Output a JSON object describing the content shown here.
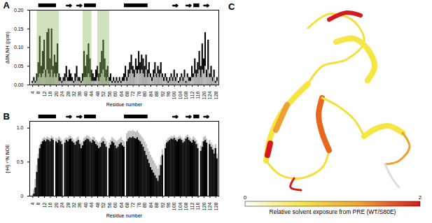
{
  "chart_data": [
    {
      "type": "bar",
      "panel": "A",
      "ylabel": "ΔδN,NH (ppm)",
      "xlabel": "Residue number",
      "x": [
        4,
        5,
        6,
        7,
        8,
        9,
        10,
        11,
        12,
        13,
        14,
        15,
        16,
        17,
        18,
        19,
        20,
        21,
        22,
        23,
        24,
        25,
        26,
        27,
        28,
        29,
        30,
        31,
        32,
        33,
        34,
        35,
        36,
        37,
        38,
        39,
        40,
        41,
        42,
        43,
        44,
        45,
        46,
        47,
        48,
        49,
        50,
        51,
        52,
        53,
        54,
        55,
        56,
        57,
        58,
        59,
        60,
        61,
        62,
        63,
        64,
        65,
        66,
        67,
        68,
        69,
        70,
        71,
        72,
        73,
        74,
        75,
        76,
        77,
        78,
        79,
        80,
        81,
        82,
        83,
        84,
        85,
        86,
        87,
        88,
        89,
        90,
        91,
        92,
        93,
        94,
        95,
        96,
        97,
        98,
        99,
        100,
        101,
        102,
        103,
        104,
        105,
        106,
        107,
        108,
        109,
        110,
        111,
        112,
        113,
        114,
        115,
        116,
        117,
        118,
        119,
        120,
        121,
        122,
        123,
        124,
        125,
        126,
        127,
        128,
        129
      ],
      "series": [
        {
          "color": "#000000",
          "values": [
            0.01,
            0.02,
            0.01,
            0.03,
            0.06,
            0.13,
            0.05,
            0.09,
            0.12,
            0.04,
            0.14,
            0.15,
            0.07,
            0.15,
            0.05,
            0.08,
            0.06,
            0.11,
            0.03,
            0.02,
            0.01,
            0.02,
            0.03,
            0.05,
            0.02,
            0.04,
            0.03,
            0.02,
            0.01,
            0.03,
            0.05,
            0.02,
            0.02,
            0.01,
            0.03,
            0.09,
            0.05,
            0.08,
            0.11,
            0.07,
            0.04,
            0.03,
            0.02,
            0.04,
            0.05,
            0.03,
            0.06,
            0.09,
            0.12,
            0.07,
            0.04,
            0.05,
            0.02,
            0.03,
            0.01,
            0.02,
            0.01,
            0.02,
            0.01,
            0.02,
            0.01,
            0.02,
            0.03,
            0.05,
            0.02,
            0.04,
            0.06,
            0.08,
            0.05,
            0.04,
            0.07,
            0.05,
            0.09,
            0.06,
            0.08,
            0.07,
            0.05,
            0.08,
            0.04,
            0.06,
            0.03,
            0.02,
            0.04,
            0.06,
            0.03,
            0.05,
            0.04,
            0.06,
            0.03,
            0.02,
            0.03,
            0.02,
            0.01,
            0.02,
            0.03,
            0.02,
            0.04,
            0.02,
            0.03,
            0.01,
            0.02,
            0.03,
            0.02,
            0.04,
            0.01,
            0.03,
            0.02,
            0.02,
            0.05,
            0.03,
            0.07,
            0.04,
            0.06,
            0.09,
            0.05,
            0.11,
            0.07,
            0.14,
            0.04,
            0.12,
            0.03,
            0.05,
            0.02,
            0.04,
            0.01,
            0.02
          ]
        },
        {
          "color": "#bdbdbd",
          "values": [
            0.005,
            0.01,
            0.005,
            0.01,
            0.02,
            0.03,
            0.02,
            0.03,
            0.04,
            0.02,
            0.04,
            0.03,
            0.02,
            0.04,
            0.02,
            0.03,
            0.02,
            0.03,
            0.01,
            0.01,
            0.005,
            0.01,
            0.01,
            0.02,
            0.01,
            0.01,
            0.01,
            0.01,
            0.005,
            0.01,
            0.02,
            0.01,
            0.01,
            0.005,
            0.01,
            0.02,
            0.02,
            0.02,
            0.03,
            0.02,
            0.01,
            0.01,
            0.01,
            0.01,
            0.02,
            0.01,
            0.02,
            0.03,
            0.04,
            0.02,
            0.01,
            0.02,
            0.01,
            0.01,
            0.005,
            0.01,
            0.005,
            0.01,
            0.005,
            0.01,
            0.005,
            0.01,
            0.01,
            0.02,
            0.01,
            0.02,
            0.03,
            0.04,
            0.03,
            0.02,
            0.04,
            0.03,
            0.04,
            0.03,
            0.04,
            0.03,
            0.02,
            0.04,
            0.02,
            0.03,
            0.02,
            0.01,
            0.02,
            0.03,
            0.02,
            0.03,
            0.02,
            0.03,
            0.02,
            0.01,
            0.02,
            0.01,
            0.005,
            0.01,
            0.02,
            0.01,
            0.02,
            0.01,
            0.02,
            0.005,
            0.01,
            0.02,
            0.01,
            0.02,
            0.005,
            0.02,
            0.01,
            0.01,
            0.02,
            0.02,
            0.03,
            0.02,
            0.03,
            0.04,
            0.02,
            0.04,
            0.03,
            0.05,
            0.02,
            0.04,
            0.02,
            0.02,
            0.01,
            0.02,
            0.005,
            0.01
          ]
        }
      ],
      "highlight_ranges": [
        [
          7,
          22
        ],
        [
          38,
          44
        ],
        [
          48,
          56
        ]
      ],
      "highlight_color": "#8db45a",
      "helices": [
        [
          8,
          20
        ],
        [
          39,
          47
        ],
        [
          66,
          82
        ],
        [
          113,
          117
        ]
      ],
      "strands": [
        [
          27,
          30
        ],
        [
          34,
          37
        ],
        [
          99,
          102
        ],
        [
          108,
          111
        ],
        [
          120,
          123
        ]
      ],
      "xlim": [
        2,
        130
      ],
      "xticks": [
        4,
        8,
        12,
        16,
        20,
        24,
        28,
        32,
        36,
        40,
        44,
        48,
        52,
        56,
        60,
        64,
        68,
        72,
        76,
        80,
        84,
        88,
        92,
        96,
        100,
        104,
        108,
        112,
        116,
        120,
        124,
        128
      ],
      "ylim": [
        0,
        0.2
      ],
      "yticks": [
        {
          "value": 0,
          "label": "0.00"
        },
        {
          "value": 0.05,
          "label": "0.05"
        },
        {
          "value": 0.1,
          "label": "0.10"
        },
        {
          "value": 0.15,
          "label": "0.15"
        },
        {
          "value": 0.2,
          "label": "0.20"
        }
      ]
    },
    {
      "type": "bar",
      "panel": "B",
      "ylabel": "{¹H} ¹⁵N NOE",
      "xlabel": "Residue number",
      "x": [
        4,
        5,
        6,
        7,
        8,
        9,
        10,
        11,
        12,
        13,
        14,
        15,
        16,
        17,
        18,
        19,
        20,
        21,
        22,
        23,
        24,
        25,
        26,
        27,
        28,
        29,
        30,
        31,
        32,
        33,
        34,
        35,
        36,
        37,
        38,
        39,
        40,
        41,
        42,
        43,
        44,
        45,
        46,
        47,
        48,
        49,
        50,
        51,
        52,
        53,
        54,
        55,
        56,
        57,
        58,
        59,
        60,
        61,
        62,
        63,
        64,
        65,
        66,
        67,
        68,
        69,
        70,
        71,
        72,
        73,
        74,
        75,
        76,
        77,
        78,
        79,
        80,
        81,
        82,
        83,
        84,
        85,
        86,
        87,
        88,
        89,
        90,
        91,
        92,
        93,
        94,
        95,
        96,
        97,
        98,
        99,
        100,
        101,
        102,
        103,
        104,
        105,
        106,
        107,
        108,
        109,
        110,
        111,
        112,
        113,
        114,
        115,
        116,
        117,
        118,
        119,
        120,
        121,
        122,
        123,
        124,
        125,
        126,
        127,
        128,
        129
      ],
      "series": [
        {
          "color": "#bdbdbd",
          "values": [
            0.02,
            0.1,
            0.25,
            0.45,
            0.62,
            0.75,
            0.8,
            0.84,
            0.86,
            0.85,
            0.87,
            0.86,
            0.85,
            0.88,
            0.86,
            null,
            0.85,
            0.84,
            0.87,
            0.85,
            0.82,
            null,
            0.84,
            0.86,
            0.85,
            0.88,
            0.88,
            0.85,
            0.83,
            0.8,
            0.85,
            0.87,
            0.82,
            0.78,
            0.8,
            0.85,
            0.87,
            0.89,
            0.88,
            0.86,
            0.84,
            0.87,
            0.86,
            0.82,
            0.8,
            0.78,
            0.8,
            0.85,
            0.87,
            0.84,
            0.8,
            null,
            0.78,
            0.82,
            0.86,
            0.84,
            0.82,
            0.8,
            0.82,
            0.84,
            0.86,
            0.82,
            0.8,
            null,
            0.92,
            0.95,
            0.96,
            0.95,
            0.97,
            0.95,
            0.94,
            0.96,
            0.93,
            0.9,
            0.87,
            0.84,
            0.8,
            0.76,
            0.7,
            0.65,
            0.6,
            0.56,
            0.52,
            0.48,
            0.44,
            0.4,
            0.46,
            0.58,
            0.68,
            null,
            0.76,
            0.82,
            0.85,
            0.86,
            0.88,
            0.87,
            0.89,
            0.86,
            0.85,
            0.87,
            0.88,
            0.86,
            0.83,
            0.85,
            0.88,
            0.9,
            0.87,
            0.85,
            0.83,
            0.87,
            0.85,
            0.82,
            0.77,
            null,
            0.74,
            0.8,
            0.86,
            0.88,
            0.84,
            null,
            0.82,
            0.78,
            0.75,
            0.7,
            0.76,
            0.62
          ]
        },
        {
          "color": "#000000",
          "values": [
            null,
            0.03,
            0.12,
            0.35,
            0.55,
            0.7,
            0.76,
            0.8,
            0.82,
            0.8,
            0.83,
            0.82,
            0.8,
            0.84,
            0.82,
            null,
            0.8,
            0.78,
            0.82,
            0.8,
            0.76,
            null,
            0.78,
            0.82,
            0.8,
            0.83,
            0.84,
            0.8,
            0.78,
            0.75,
            0.8,
            0.82,
            0.76,
            0.7,
            0.74,
            0.8,
            0.82,
            0.84,
            0.83,
            0.8,
            0.78,
            0.82,
            0.8,
            0.76,
            0.74,
            0.7,
            0.72,
            0.78,
            0.8,
            0.76,
            0.72,
            null,
            0.7,
            0.75,
            0.8,
            0.78,
            0.74,
            0.7,
            0.72,
            0.76,
            0.78,
            0.74,
            0.72,
            null,
            0.8,
            0.84,
            0.86,
            0.85,
            0.87,
            0.85,
            0.84,
            0.86,
            0.82,
            0.8,
            0.76,
            0.72,
            0.66,
            0.6,
            0.54,
            0.48,
            0.42,
            0.38,
            0.34,
            0.3,
            0.26,
            0.22,
            0.3,
            0.45,
            0.6,
            null,
            0.7,
            0.78,
            0.8,
            0.82,
            0.84,
            0.83,
            0.85,
            0.82,
            0.8,
            0.83,
            0.84,
            0.82,
            0.78,
            0.8,
            0.84,
            0.86,
            0.82,
            0.8,
            0.78,
            0.82,
            0.8,
            0.76,
            0.7,
            null,
            0.66,
            0.72,
            0.8,
            0.82,
            0.78,
            null,
            0.76,
            0.72,
            0.68,
            0.62,
            0.7,
            0.55
          ]
        }
      ],
      "helices": [
        [
          8,
          20
        ],
        [
          39,
          47
        ],
        [
          66,
          82
        ],
        [
          113,
          117
        ]
      ],
      "strands": [
        [
          27,
          30
        ],
        [
          34,
          37
        ],
        [
          99,
          102
        ],
        [
          108,
          111
        ],
        [
          120,
          123
        ]
      ],
      "xlim": [
        2,
        130
      ],
      "xticks": [
        4,
        8,
        12,
        16,
        20,
        24,
        28,
        32,
        36,
        40,
        44,
        48,
        52,
        56,
        60,
        64,
        68,
        72,
        76,
        80,
        84,
        88,
        92,
        96,
        100,
        104,
        108,
        112,
        116,
        120,
        124,
        128
      ],
      "ylim": [
        0,
        1.1
      ],
      "yticks": [
        0,
        0.5,
        {
          "value": 1,
          "label": "1.0"
        }
      ]
    },
    {
      "type": "structure",
      "panel": "C",
      "colorbar": {
        "range": [
          0,
          2
        ],
        "ticks": [
          0,
          2
        ],
        "colors": [
          "#ffffff",
          "#f5e642",
          "#f0a030",
          "#d7191c"
        ],
        "label": "Relative solvent exposure from PRE (WT/S80E)"
      }
    }
  ]
}
